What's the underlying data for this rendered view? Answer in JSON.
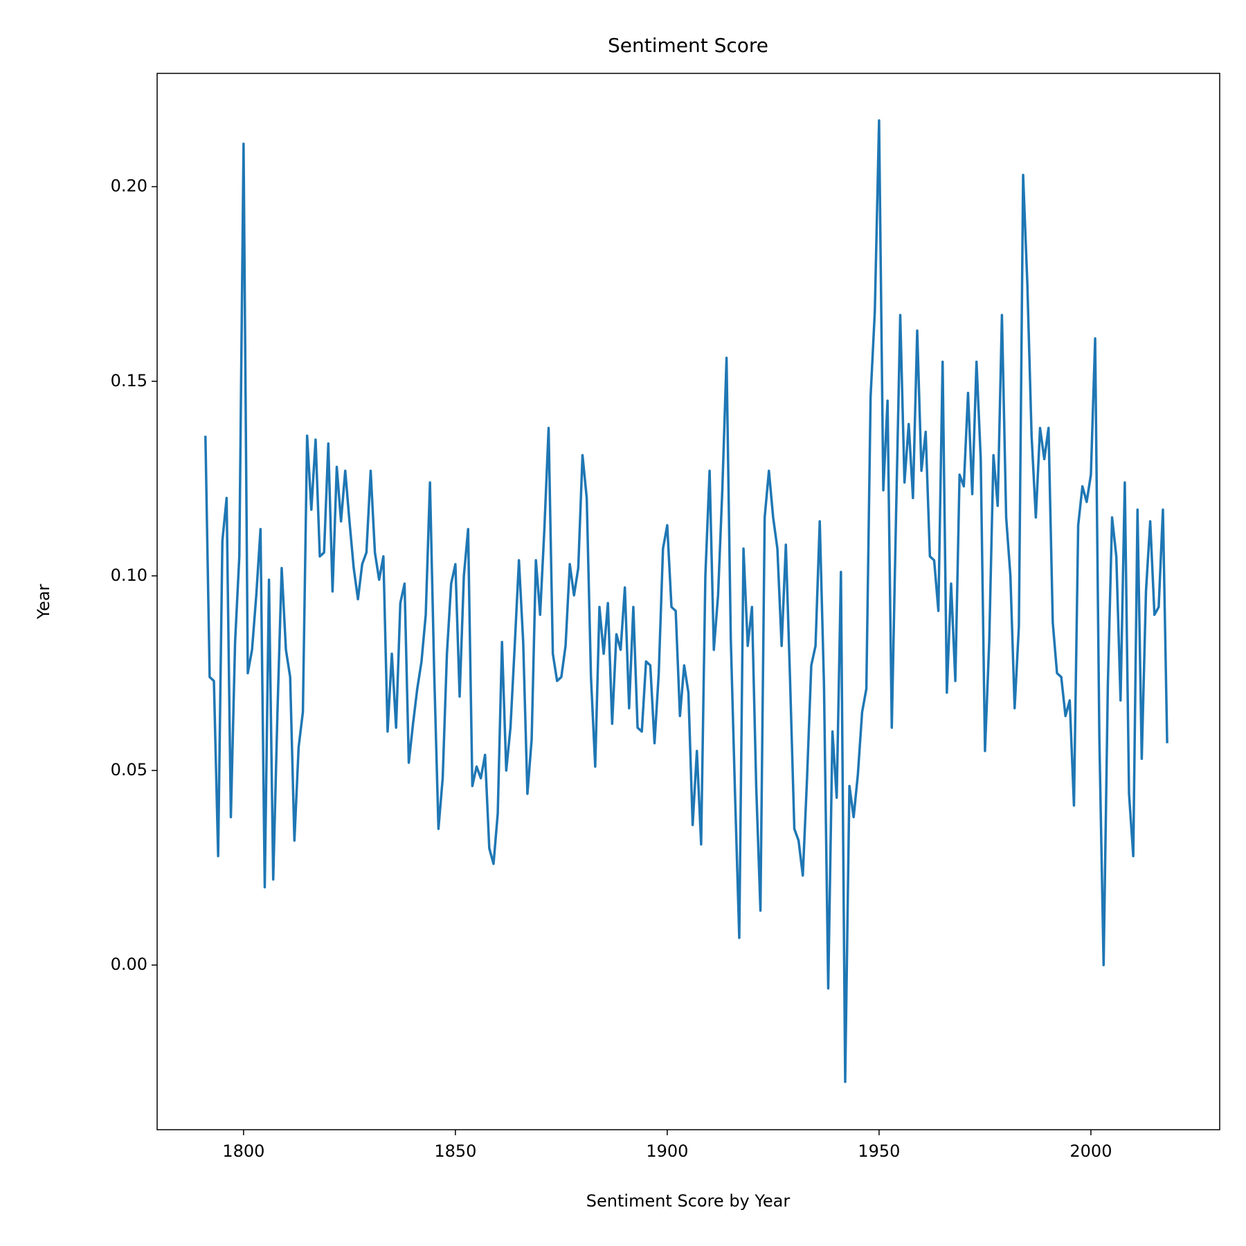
{
  "chart_data": {
    "type": "line",
    "title": "Sentiment Score",
    "xlabel": "Sentiment Score by Year",
    "ylabel": "Year",
    "color": "#1f77b4",
    "x": [
      1791,
      1792,
      1793,
      1794,
      1795,
      1796,
      1797,
      1798,
      1799,
      1800,
      1801,
      1802,
      1803,
      1804,
      1805,
      1806,
      1807,
      1808,
      1809,
      1810,
      1811,
      1812,
      1813,
      1814,
      1815,
      1816,
      1817,
      1818,
      1819,
      1820,
      1821,
      1822,
      1823,
      1824,
      1825,
      1826,
      1827,
      1828,
      1829,
      1830,
      1831,
      1832,
      1833,
      1834,
      1835,
      1836,
      1837,
      1838,
      1839,
      1840,
      1841,
      1842,
      1843,
      1844,
      1845,
      1846,
      1847,
      1848,
      1849,
      1850,
      1851,
      1852,
      1853,
      1854,
      1855,
      1856,
      1857,
      1858,
      1859,
      1860,
      1861,
      1862,
      1863,
      1864,
      1865,
      1866,
      1867,
      1868,
      1869,
      1870,
      1871,
      1872,
      1873,
      1874,
      1875,
      1876,
      1877,
      1878,
      1879,
      1880,
      1881,
      1882,
      1883,
      1884,
      1885,
      1886,
      1887,
      1888,
      1889,
      1890,
      1891,
      1892,
      1893,
      1894,
      1895,
      1896,
      1897,
      1898,
      1899,
      1900,
      1901,
      1902,
      1903,
      1904,
      1905,
      1906,
      1907,
      1908,
      1909,
      1910,
      1911,
      1912,
      1913,
      1914,
      1915,
      1916,
      1917,
      1918,
      1919,
      1920,
      1921,
      1922,
      1923,
      1924,
      1925,
      1926,
      1927,
      1928,
      1929,
      1930,
      1931,
      1932,
      1933,
      1934,
      1935,
      1936,
      1937,
      1938,
      1939,
      1940,
      1941,
      1942,
      1943,
      1944,
      1945,
      1946,
      1947,
      1948,
      1949,
      1950,
      1951,
      1952,
      1953,
      1954,
      1955,
      1956,
      1957,
      1958,
      1959,
      1960,
      1961,
      1962,
      1963,
      1964,
      1965,
      1966,
      1967,
      1968,
      1969,
      1970,
      1971,
      1972,
      1973,
      1974,
      1975,
      1976,
      1977,
      1978,
      1979,
      1980,
      1981,
      1982,
      1983,
      1984,
      1985,
      1986,
      1987,
      1988,
      1989,
      1990,
      1991,
      1992,
      1993,
      1994,
      1995,
      1996,
      1997,
      1998,
      1999,
      2000,
      2001,
      2002,
      2003,
      2004,
      2005,
      2006,
      2007,
      2008,
      2009,
      2010,
      2011,
      2012,
      2013,
      2014,
      2015,
      2016,
      2017,
      2018
    ],
    "values": [
      0.136,
      0.074,
      0.073,
      0.028,
      0.109,
      0.12,
      0.038,
      0.083,
      0.105,
      0.211,
      0.075,
      0.081,
      0.095,
      0.112,
      0.02,
      0.099,
      0.022,
      0.065,
      0.102,
      0.081,
      0.074,
      0.032,
      0.056,
      0.065,
      0.136,
      0.117,
      0.135,
      0.105,
      0.106,
      0.134,
      0.096,
      0.128,
      0.114,
      0.127,
      0.114,
      0.102,
      0.094,
      0.103,
      0.106,
      0.127,
      0.106,
      0.099,
      0.105,
      0.06,
      0.08,
      0.061,
      0.093,
      0.098,
      0.052,
      0.062,
      0.071,
      0.078,
      0.09,
      0.124,
      0.075,
      0.035,
      0.048,
      0.08,
      0.098,
      0.103,
      0.069,
      0.1,
      0.112,
      0.046,
      0.051,
      0.048,
      0.054,
      0.03,
      0.026,
      0.039,
      0.083,
      0.05,
      0.061,
      0.082,
      0.104,
      0.083,
      0.044,
      0.058,
      0.104,
      0.09,
      0.112,
      0.138,
      0.08,
      0.073,
      0.074,
      0.082,
      0.103,
      0.095,
      0.102,
      0.131,
      0.12,
      0.074,
      0.051,
      0.092,
      0.08,
      0.093,
      0.062,
      0.085,
      0.081,
      0.097,
      0.066,
      0.092,
      0.061,
      0.06,
      0.078,
      0.077,
      0.057,
      0.075,
      0.107,
      0.113,
      0.092,
      0.091,
      0.064,
      0.077,
      0.07,
      0.036,
      0.055,
      0.031,
      0.1,
      0.127,
      0.081,
      0.095,
      0.122,
      0.156,
      0.084,
      0.044,
      0.007,
      0.107,
      0.082,
      0.092,
      0.046,
      0.014,
      0.115,
      0.127,
      0.115,
      0.107,
      0.082,
      0.108,
      0.073,
      0.035,
      0.032,
      0.023,
      0.048,
      0.077,
      0.082,
      0.114,
      0.072,
      -0.006,
      0.06,
      0.043,
      0.101,
      -0.03,
      0.046,
      0.038,
      0.049,
      0.065,
      0.071,
      0.146,
      0.168,
      0.217,
      0.122,
      0.145,
      0.061,
      0.115,
      0.167,
      0.124,
      0.139,
      0.12,
      0.163,
      0.127,
      0.137,
      0.105,
      0.104,
      0.091,
      0.155,
      0.07,
      0.098,
      0.073,
      0.126,
      0.123,
      0.147,
      0.121,
      0.155,
      0.13,
      0.055,
      0.083,
      0.131,
      0.118,
      0.167,
      0.115,
      0.1,
      0.066,
      0.087,
      0.203,
      0.175,
      0.136,
      0.115,
      0.138,
      0.13,
      0.138,
      0.088,
      0.075,
      0.074,
      0.064,
      0.068,
      0.041,
      0.113,
      0.123,
      0.119,
      0.126,
      0.161,
      0.058,
      0.0,
      0.072,
      0.115,
      0.105,
      0.068,
      0.124,
      0.044,
      0.028,
      0.117,
      0.053,
      0.096,
      0.114,
      0.09,
      0.092,
      0.117,
      0.057
    ],
    "xlim": [
      1779.6,
      2030.4
    ],
    "ylim": [
      -0.0423,
      0.2291
    ],
    "xticks": [
      1800,
      1850,
      1900,
      1950,
      2000
    ],
    "yticks": [
      {
        "value": 0,
        "label": "0.00"
      },
      {
        "value": 0.05,
        "label": "0.05"
      },
      {
        "value": 0.1,
        "label": "0.10"
      },
      {
        "value": 0.15,
        "label": "0.15"
      },
      {
        "value": 0.2,
        "label": "0.20"
      }
    ]
  }
}
